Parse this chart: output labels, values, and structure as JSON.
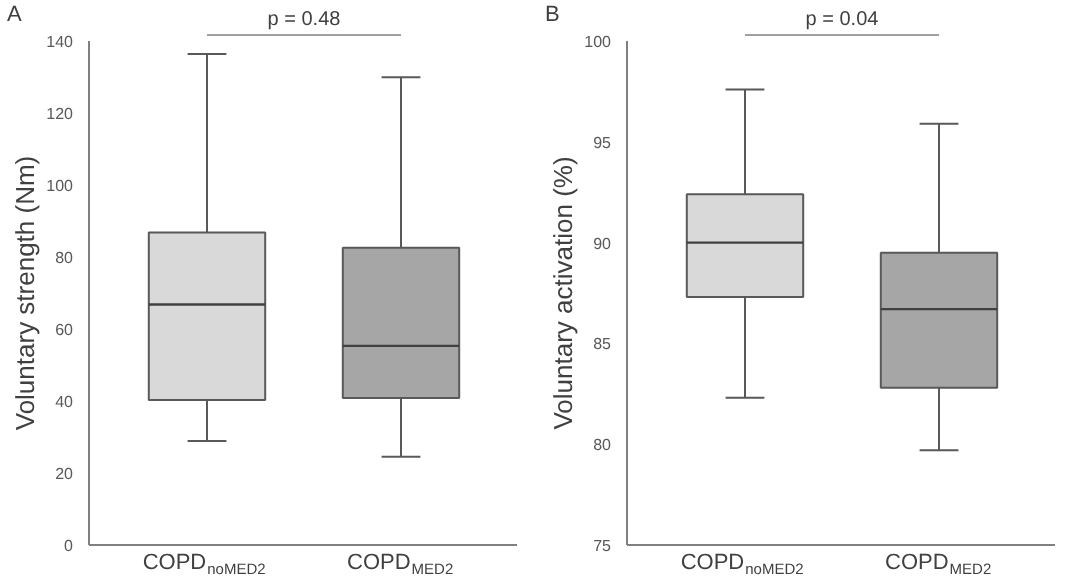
{
  "chart_data": [
    {
      "type": "box",
      "title": "A",
      "ylabel": "Voluntary strength (Nm)",
      "categories": [
        "COPD$_{noMED2}$",
        "COPD$_{MED2}$"
      ],
      "colors": [
        "#d9d9d9",
        "#a6a6a6"
      ],
      "boxes": [
        {
          "low": 28.9,
          "q1": 40.3,
          "median": 66.8,
          "q3": 86.8,
          "high": 136.4
        },
        {
          "low": 24.5,
          "q1": 40.8,
          "median": 55.3,
          "q3": 82.6,
          "high": 129.9
        }
      ],
      "ylim": [
        0,
        140
      ],
      "yticks": [
        0,
        20,
        40,
        60,
        80,
        100,
        120,
        140
      ],
      "annotations": [
        "p = 0.48"
      ]
    },
    {
      "type": "box",
      "title": "B",
      "ylabel": "Voluntary activation (%)",
      "categories": [
        "COPD$_{noMED2}$",
        "COPD$_{MED2}$"
      ],
      "colors": [
        "#d9d9d9",
        "#a6a6a6"
      ],
      "boxes": [
        {
          "low": 82.3,
          "q1": 87.3,
          "median": 90.0,
          "q3": 92.4,
          "high": 97.6
        },
        {
          "low": 79.7,
          "q1": 82.8,
          "median": 86.7,
          "q3": 89.5,
          "high": 95.9
        }
      ],
      "ylim": [
        75,
        100
      ],
      "yticks": [
        75,
        80,
        85,
        90,
        95,
        100
      ],
      "annotations": [
        "p = 0.04"
      ]
    }
  ]
}
